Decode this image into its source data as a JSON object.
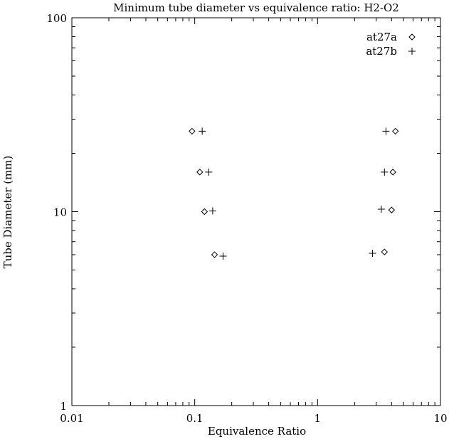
{
  "chart_data": {
    "type": "scatter",
    "title": "Minimum tube diameter vs equivalence ratio: H2-O2",
    "xlabel": "Equivalence Ratio",
    "ylabel": "Tube Diameter (mm)",
    "xscale": "log",
    "yscale": "log",
    "xlim": [
      0.01,
      10
    ],
    "ylim": [
      1,
      100
    ],
    "x_ticks": [
      0.01,
      0.1,
      1,
      10
    ],
    "x_tick_labels": [
      "0.01",
      "0.1",
      "1",
      "10"
    ],
    "y_ticks": [
      1,
      10,
      100
    ],
    "y_tick_labels": [
      "1",
      "10",
      "100"
    ],
    "grid": false,
    "legend": "top-right",
    "series": [
      {
        "name": "at27a",
        "marker": "diamond",
        "points": [
          {
            "x": 0.095,
            "y": 26
          },
          {
            "x": 0.11,
            "y": 16
          },
          {
            "x": 0.12,
            "y": 10
          },
          {
            "x": 0.145,
            "y": 6
          },
          {
            "x": 4.3,
            "y": 26
          },
          {
            "x": 4.1,
            "y": 16
          },
          {
            "x": 4.0,
            "y": 10.2
          },
          {
            "x": 3.5,
            "y": 6.2
          }
        ]
      },
      {
        "name": "at27b",
        "marker": "plus",
        "points": [
          {
            "x": 0.115,
            "y": 26
          },
          {
            "x": 0.13,
            "y": 16
          },
          {
            "x": 0.14,
            "y": 10.1
          },
          {
            "x": 0.17,
            "y": 5.9
          },
          {
            "x": 3.6,
            "y": 26
          },
          {
            "x": 3.5,
            "y": 16
          },
          {
            "x": 3.3,
            "y": 10.3
          },
          {
            "x": 2.8,
            "y": 6.1
          }
        ]
      }
    ]
  }
}
